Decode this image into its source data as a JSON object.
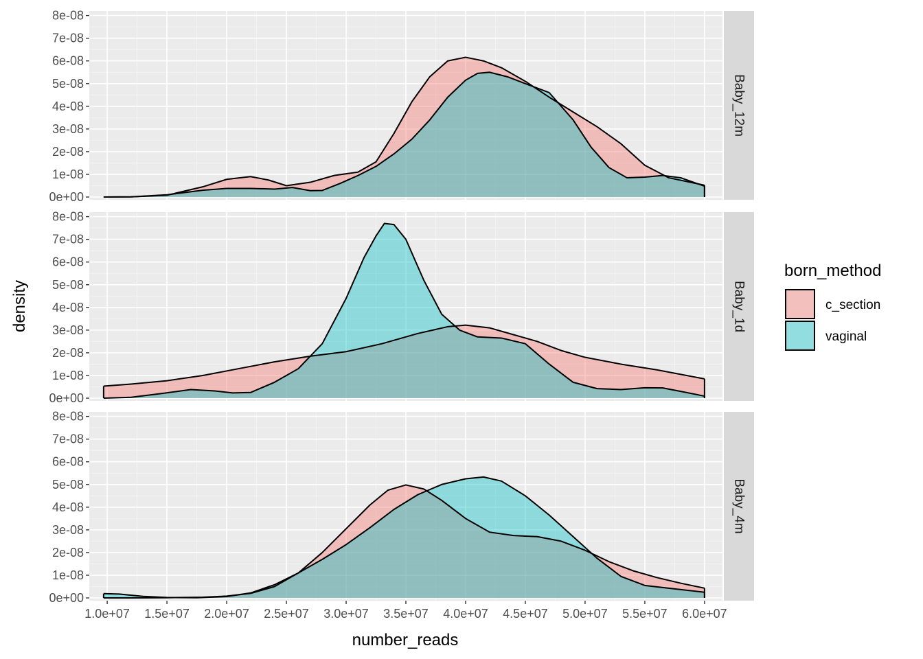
{
  "chart_data": {
    "type": "area",
    "subtype": "density, faceted by panel",
    "xlabel": "number_reads",
    "ylabel": "density",
    "xlim": [
      8500000,
      61500000
    ],
    "ylim": [
      -1.2e-09,
      8.2e-08
    ],
    "x_ticks": [
      10000000,
      15000000,
      20000000,
      25000000,
      30000000,
      35000000,
      40000000,
      45000000,
      50000000,
      55000000,
      60000000
    ],
    "x_tick_labels": [
      "1.0e+07",
      "1.5e+07",
      "2.0e+07",
      "2.5e+07",
      "3.0e+07",
      "3.5e+07",
      "4.0e+07",
      "4.5e+07",
      "5.0e+07",
      "5.5e+07",
      "6.0e+07"
    ],
    "y_ticks": [
      0,
      1e-08,
      2e-08,
      3e-08,
      4e-08,
      5e-08,
      6e-08,
      7e-08,
      8e-08
    ],
    "y_tick_labels": [
      "0e+00",
      "1e-08",
      "2e-08",
      "3e-08",
      "4e-08",
      "5e-08",
      "6e-08",
      "7e-08",
      "8e-08"
    ],
    "grid": true,
    "legend": {
      "title": "born_method",
      "position": "right",
      "entries": [
        {
          "name": "c_section",
          "color": "#F8766D"
        },
        {
          "name": "vaginal",
          "color": "#00BFC4"
        }
      ]
    },
    "fill_alpha": 0.4,
    "panels": [
      {
        "label": "Baby_12m",
        "series": [
          {
            "name": "c_section",
            "color": "#F8766D",
            "points": [
              [
                9700000,
                0
              ],
              [
                12000000,
                1e-10
              ],
              [
                15000000,
                8e-10
              ],
              [
                18000000,
                4.5e-09
              ],
              [
                20000000,
                7.8e-09
              ],
              [
                22000000,
                9e-09
              ],
              [
                23500000,
                7.5e-09
              ],
              [
                25000000,
                5e-09
              ],
              [
                27000000,
                6.5e-09
              ],
              [
                29000000,
                9.5e-09
              ],
              [
                31000000,
                1.1e-08
              ],
              [
                32500000,
                1.55e-08
              ],
              [
                34000000,
                2.8e-08
              ],
              [
                35500000,
                4.2e-08
              ],
              [
                37000000,
                5.3e-08
              ],
              [
                38500000,
                6e-08
              ],
              [
                40000000,
                6.16e-08
              ],
              [
                41500000,
                6e-08
              ],
              [
                43000000,
                5.7e-08
              ],
              [
                45000000,
                5.1e-08
              ],
              [
                47000000,
                4.4e-08
              ],
              [
                49000000,
                3.75e-08
              ],
              [
                51000000,
                3.1e-08
              ],
              [
                53000000,
                2.35e-08
              ],
              [
                55000000,
                1.4e-08
              ],
              [
                57000000,
                8.5e-09
              ],
              [
                59999000,
                5.2e-09
              ]
            ]
          },
          {
            "name": "vaginal",
            "color": "#00BFC4",
            "points": [
              [
                9700000,
                0
              ],
              [
                12000000,
                1e-10
              ],
              [
                15000000,
                1e-09
              ],
              [
                18000000,
                3e-09
              ],
              [
                20000000,
                3.8e-09
              ],
              [
                22000000,
                3.8e-09
              ],
              [
                24000000,
                3.5e-09
              ],
              [
                25500000,
                4.2e-09
              ],
              [
                27000000,
                2.8e-09
              ],
              [
                28000000,
                2.9e-09
              ],
              [
                29500000,
                6e-09
              ],
              [
                31000000,
                9.5e-09
              ],
              [
                32500000,
                1.35e-08
              ],
              [
                34000000,
                1.9e-08
              ],
              [
                35500000,
                2.55e-08
              ],
              [
                37000000,
                3.4e-08
              ],
              [
                38500000,
                4.4e-08
              ],
              [
                40000000,
                5.15e-08
              ],
              [
                41000000,
                5.45e-08
              ],
              [
                42000000,
                5.5e-08
              ],
              [
                43500000,
                5.3e-08
              ],
              [
                45000000,
                5e-08
              ],
              [
                47000000,
                4.6e-08
              ],
              [
                49000000,
                3.4e-08
              ],
              [
                50500000,
                2.2e-08
              ],
              [
                52000000,
                1.3e-08
              ],
              [
                53500000,
                8.5e-09
              ],
              [
                55000000,
                8.8e-09
              ],
              [
                56500000,
                9.5e-09
              ],
              [
                58000000,
                8.5e-09
              ],
              [
                59999000,
                4.8e-09
              ]
            ]
          }
        ]
      },
      {
        "label": "Baby_1d",
        "series": [
          {
            "name": "c_section",
            "color": "#F8766D",
            "points": [
              [
                9700000,
                5.3e-09
              ],
              [
                12000000,
                6.2e-09
              ],
              [
                15000000,
                7.7e-09
              ],
              [
                18000000,
                1e-08
              ],
              [
                21000000,
                1.3e-08
              ],
              [
                24000000,
                1.6e-08
              ],
              [
                27000000,
                1.85e-08
              ],
              [
                30000000,
                2.05e-08
              ],
              [
                33000000,
                2.4e-08
              ],
              [
                36000000,
                2.85e-08
              ],
              [
                38500000,
                3.15e-08
              ],
              [
                40000000,
                3.22e-08
              ],
              [
                42000000,
                3.1e-08
              ],
              [
                44000000,
                2.8e-08
              ],
              [
                46000000,
                2.5e-08
              ],
              [
                48000000,
                2.1e-08
              ],
              [
                50000000,
                1.8e-08
              ],
              [
                53000000,
                1.5e-08
              ],
              [
                56000000,
                1.25e-08
              ],
              [
                59999000,
                8.5e-09
              ]
            ]
          },
          {
            "name": "vaginal",
            "color": "#00BFC4",
            "points": [
              [
                9700000,
                0
              ],
              [
                12000000,
                4e-10
              ],
              [
                14500000,
                2e-09
              ],
              [
                17000000,
                3.8e-09
              ],
              [
                19000000,
                3.2e-09
              ],
              [
                20500000,
                2.3e-09
              ],
              [
                22000000,
                2.5e-09
              ],
              [
                24000000,
                7e-09
              ],
              [
                26000000,
                1.3e-08
              ],
              [
                28000000,
                2.4e-08
              ],
              [
                30000000,
                4.4e-08
              ],
              [
                31500000,
                6.2e-08
              ],
              [
                32500000,
                7.15e-08
              ],
              [
                33200000,
                7.7e-08
              ],
              [
                34000000,
                7.65e-08
              ],
              [
                35000000,
                7e-08
              ],
              [
                36500000,
                5.2e-08
              ],
              [
                38000000,
                3.7e-08
              ],
              [
                39500000,
                3e-08
              ],
              [
                41000000,
                2.7e-08
              ],
              [
                43000000,
                2.65e-08
              ],
              [
                45000000,
                2.4e-08
              ],
              [
                47000000,
                1.5e-08
              ],
              [
                49000000,
                7e-09
              ],
              [
                51000000,
                4.2e-09
              ],
              [
                53000000,
                3.8e-09
              ],
              [
                55000000,
                4.6e-09
              ],
              [
                56500000,
                4.5e-09
              ],
              [
                58000000,
                3e-09
              ],
              [
                59999000,
                9e-10
              ]
            ]
          }
        ]
      },
      {
        "label": "Baby_4m",
        "series": [
          {
            "name": "c_section",
            "color": "#F8766D",
            "points": [
              [
                9700000,
                0
              ],
              [
                12000000,
                0
              ],
              [
                15000000,
                1e-10
              ],
              [
                18000000,
                3e-10
              ],
              [
                20000000,
                8e-10
              ],
              [
                22000000,
                2e-09
              ],
              [
                24000000,
                5e-09
              ],
              [
                26000000,
                1.1e-08
              ],
              [
                28000000,
                2e-08
              ],
              [
                30000000,
                3.05e-08
              ],
              [
                32000000,
                4.1e-08
              ],
              [
                33500000,
                4.75e-08
              ],
              [
                35000000,
                4.98e-08
              ],
              [
                36500000,
                4.8e-08
              ],
              [
                38000000,
                4.3e-08
              ],
              [
                40000000,
                3.5e-08
              ],
              [
                42000000,
                2.9e-08
              ],
              [
                44000000,
                2.75e-08
              ],
              [
                46000000,
                2.7e-08
              ],
              [
                48000000,
                2.5e-08
              ],
              [
                50000000,
                2.1e-08
              ],
              [
                52000000,
                1.6e-08
              ],
              [
                54000000,
                1.2e-08
              ],
              [
                56000000,
                9e-09
              ],
              [
                58000000,
                6.5e-09
              ],
              [
                59999000,
                4.3e-09
              ]
            ]
          },
          {
            "name": "vaginal",
            "color": "#00BFC4",
            "points": [
              [
                9700000,
                1.9e-09
              ],
              [
                11000000,
                1.7e-09
              ],
              [
                13000000,
                7e-10
              ],
              [
                15000000,
                2e-10
              ],
              [
                17500000,
                1e-10
              ],
              [
                20000000,
                6e-10
              ],
              [
                22000000,
                2.2e-09
              ],
              [
                24000000,
                5.8e-09
              ],
              [
                26000000,
                1.1e-08
              ],
              [
                28000000,
                1.7e-08
              ],
              [
                30000000,
                2.35e-08
              ],
              [
                32000000,
                3.1e-08
              ],
              [
                34000000,
                3.9e-08
              ],
              [
                36000000,
                4.55e-08
              ],
              [
                38000000,
                5e-08
              ],
              [
                40000000,
                5.25e-08
              ],
              [
                41500000,
                5.33e-08
              ],
              [
                43000000,
                5.15e-08
              ],
              [
                45000000,
                4.5e-08
              ],
              [
                47000000,
                3.65e-08
              ],
              [
                49000000,
                2.7e-08
              ],
              [
                51000000,
                1.75e-08
              ],
              [
                53000000,
                9.5e-09
              ],
              [
                55000000,
                5.5e-09
              ],
              [
                57000000,
                4.3e-09
              ],
              [
                59999000,
                2.5e-09
              ]
            ]
          }
        ]
      }
    ]
  }
}
